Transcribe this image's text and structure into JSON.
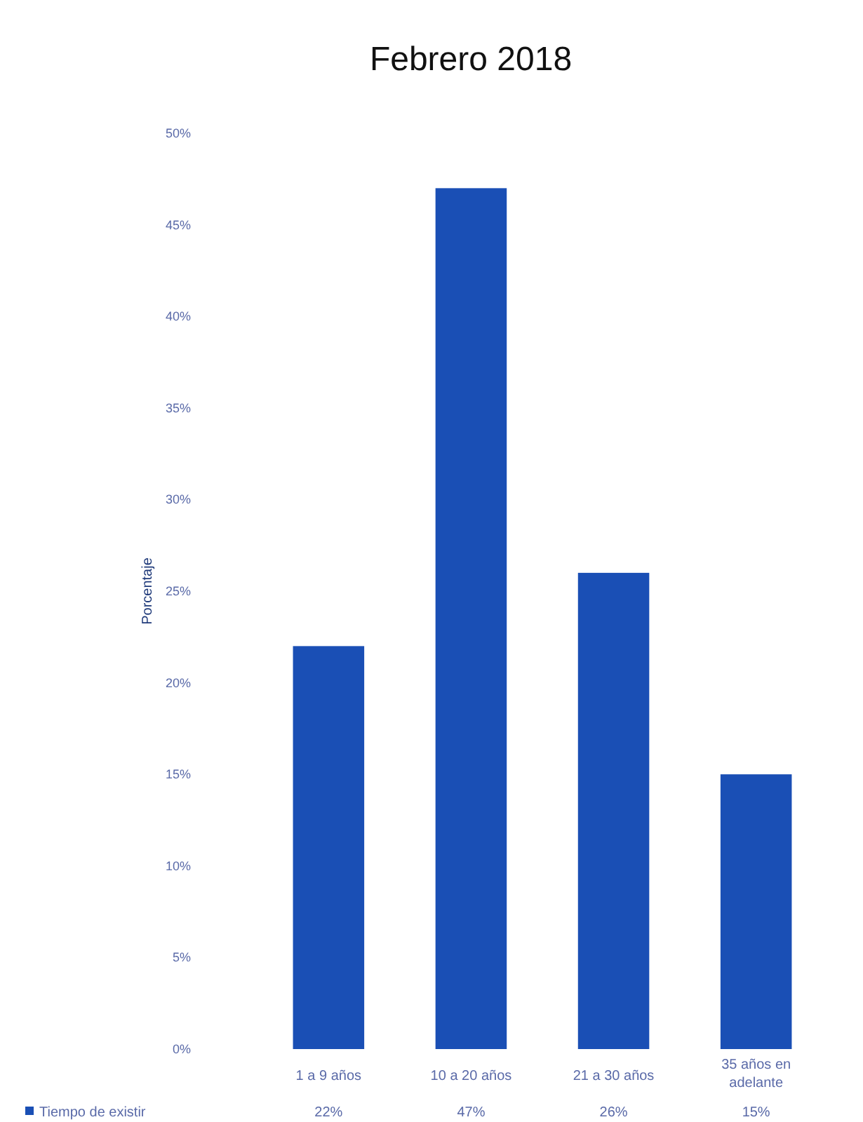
{
  "chart_data": {
    "type": "bar",
    "title": "Febrero 2018",
    "ylabel": "Porcentaje",
    "categories": [
      "1 a 9 años",
      "10 a 20 años",
      "21 a 30 años",
      "35 años en adelante"
    ],
    "series": [
      {
        "name": "Tiempo de existir",
        "color": "#1a4fb5",
        "values": [
          22,
          47,
          26,
          15
        ],
        "value_labels": [
          "22%",
          "47%",
          "26%",
          "15%"
        ]
      }
    ],
    "ylim": [
      0,
      50
    ],
    "yticks": [
      {
        "value": 0,
        "label": "0%"
      },
      {
        "value": 5,
        "label": "5%"
      },
      {
        "value": 10,
        "label": "10%"
      },
      {
        "value": 15,
        "label": "15%"
      },
      {
        "value": 20,
        "label": "20%"
      },
      {
        "value": 25,
        "label": "25%"
      },
      {
        "value": 30,
        "label": "30%"
      },
      {
        "value": 35,
        "label": "35%"
      },
      {
        "value": 40,
        "label": "40%"
      },
      {
        "value": 45,
        "label": "45%"
      },
      {
        "value": 50,
        "label": "50%"
      }
    ],
    "legend": "bottom"
  }
}
